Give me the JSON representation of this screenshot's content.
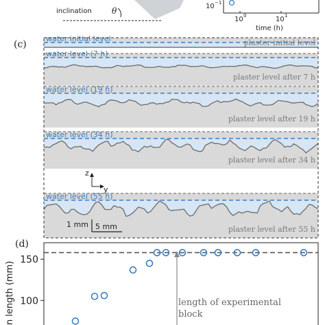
{
  "panel_top": {
    "inclination_label": "inclination",
    "theta_symbol": "θ",
    "time_axis_label": "time (h)",
    "tick_100": "10",
    "tick_100_exp": "0",
    "tick_101": "10",
    "tick_101_exp": "1",
    "tick_ylow": "10",
    "tick_ylow_exp": "−1"
  },
  "panel_c": {
    "label": "(c)",
    "rows": [
      {
        "water_label": "water initial level",
        "plaster_label": "plaster initial level"
      },
      {
        "water_label": "water level (7 h)",
        "plaster_label": "plaster level after 7 h"
      },
      {
        "water_label": "water level (19 h)",
        "plaster_label": "plaster level after 19 h"
      },
      {
        "water_label": "water level (34 h)",
        "plaster_label": "plaster level after 34 h"
      },
      {
        "water_label": "water level (55 h)",
        "plaster_label": "plaster level after 55 h"
      }
    ],
    "axis_z": "z",
    "axis_y": "y",
    "scale_vertical": "1 mm",
    "scale_horizontal": "5 mm"
  },
  "panel_d": {
    "label": "(d)",
    "ylabel_visible": "n length (mm)",
    "annotation_line1": "length of experimental",
    "annotation_line2": "block"
  },
  "chart_data": {
    "type": "scatter",
    "title": "",
    "xlabel": "",
    "ylabel": "n length (mm)",
    "ylim": [
      62,
      170
    ],
    "yticks": [
      100,
      150
    ],
    "reference_line": 158,
    "marker_color": "#3a7fc1",
    "reference_color": "#555555",
    "points": [
      {
        "y": 75
      },
      {
        "y": 105
      },
      {
        "y": 106
      },
      {
        "y": 137
      },
      {
        "y": 145
      },
      {
        "y": 158
      },
      {
        "y": 158
      },
      {
        "y": 158
      },
      {
        "y": 158
      },
      {
        "y": 158
      },
      {
        "y": 158
      },
      {
        "y": 158
      },
      {
        "y": 158
      }
    ]
  },
  "colors": {
    "water_blue": "#3a7fc1",
    "water_fill": "#d6e6f5",
    "plaster_gray": "#d9d9d9",
    "profile_line": "#6b6b6b",
    "text_gray": "#7a7a7a"
  }
}
